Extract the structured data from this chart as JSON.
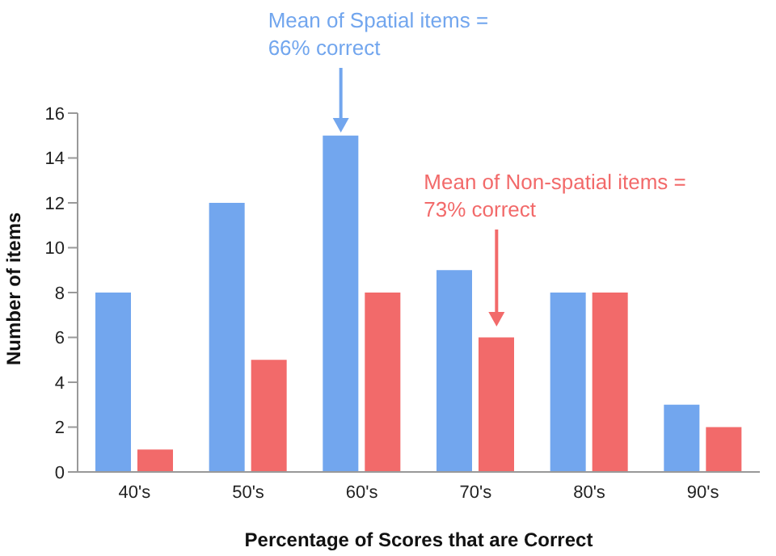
{
  "chart_data": {
    "type": "bar",
    "xlabel": "Percentage of Scores that are Correct",
    "ylabel": "Number of items",
    "categories": [
      "40's",
      "50's",
      "60's",
      "70's",
      "80's",
      "90's"
    ],
    "series": [
      {
        "color": "#72a6ee",
        "values": [
          8,
          12,
          15,
          9,
          8,
          3
        ]
      },
      {
        "color": "#f26a6a",
        "values": [
          1,
          5,
          8,
          6,
          8,
          2
        ]
      }
    ],
    "ylim": [
      0,
      16
    ],
    "yticks": [
      0,
      2,
      4,
      6,
      8,
      10,
      12,
      14,
      16
    ],
    "grid": false,
    "legend": false,
    "annotations": [
      "Mean of Spatial items = 66% correct",
      "Mean of Non-spatial items = 73% correct"
    ]
  }
}
